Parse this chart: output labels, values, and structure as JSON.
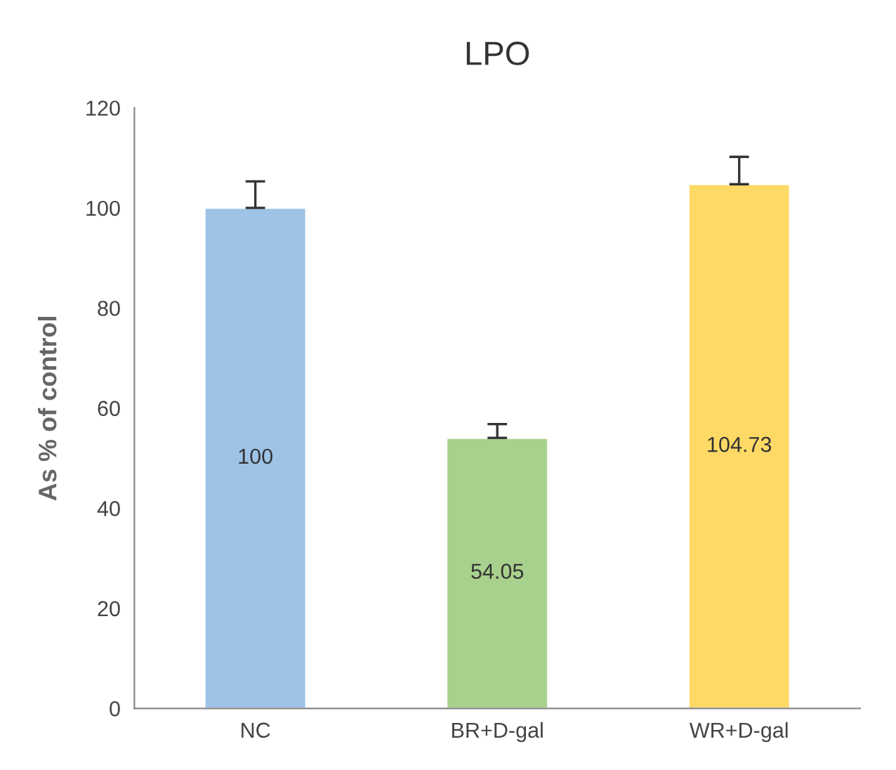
{
  "chart_data": {
    "type": "bar",
    "title": "LPO",
    "ylabel": "As % of control",
    "categories": [
      "NC",
      "BR+D-gal",
      "WR+D-gal"
    ],
    "values": [
      100,
      54.05,
      104.73
    ],
    "colors": [
      "#9dc3e6",
      "#a9d18e",
      "#ffd966"
    ],
    "errors": [
      [
        100,
        105.3
      ],
      [
        54.05,
        56.8
      ],
      [
        104.73,
        110.2
      ]
    ],
    "ylim": [
      0,
      120
    ],
    "yticks": [
      0,
      20,
      40,
      60,
      80,
      100,
      120
    ],
    "data_labels": true,
    "grid": false,
    "legend": false
  }
}
